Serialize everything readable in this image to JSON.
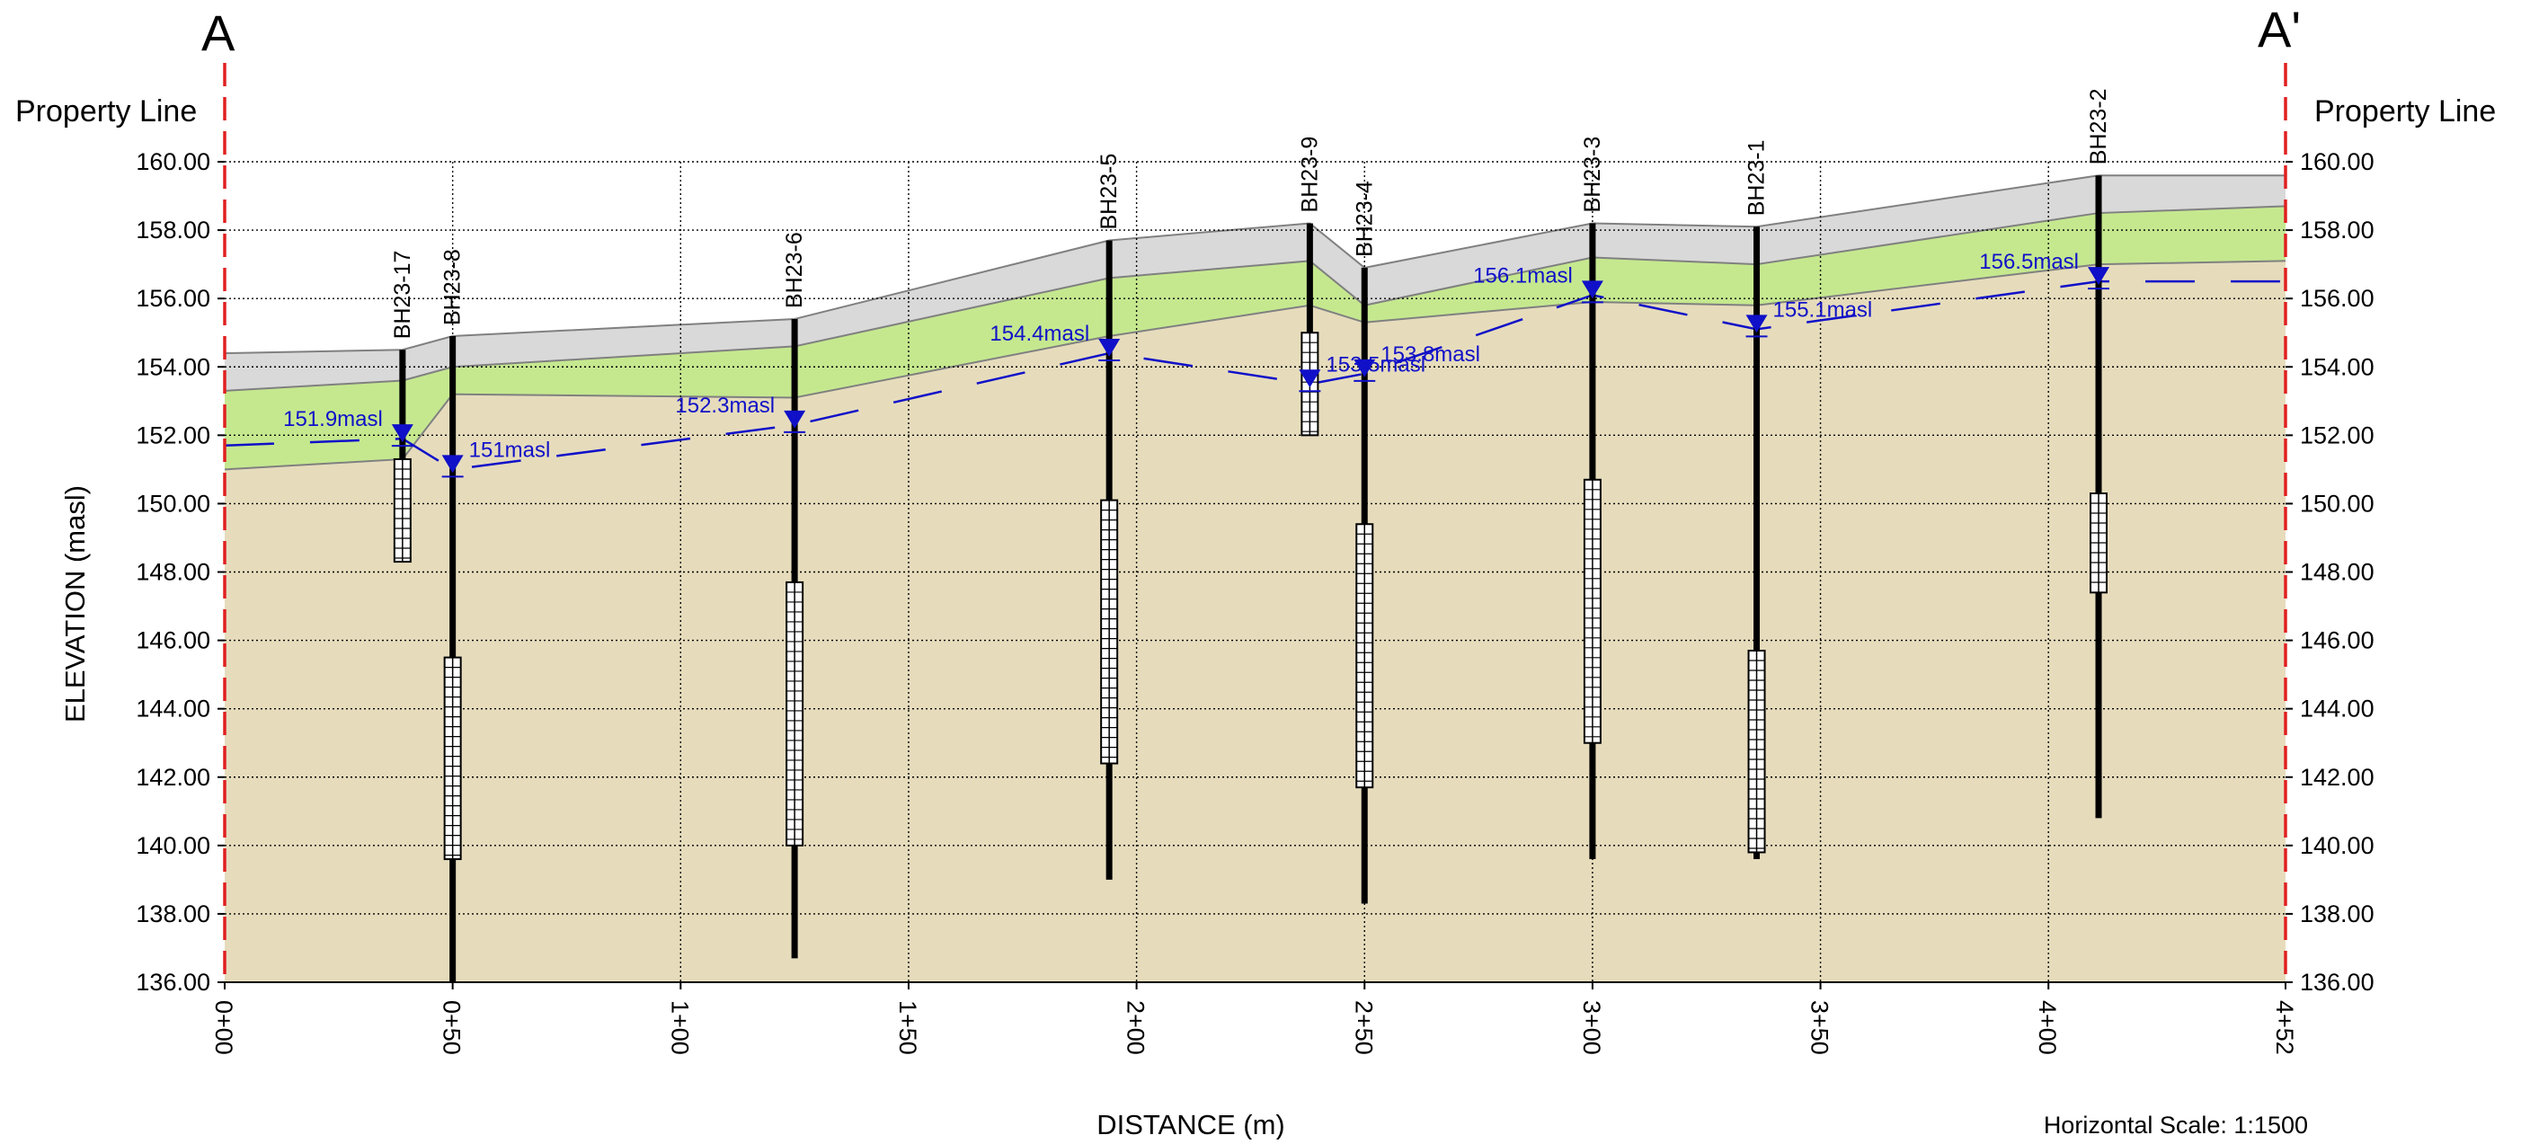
{
  "section": {
    "start_letter": "A",
    "end_letter": "A'",
    "left_boundary_label": "Property Line",
    "right_boundary_label": "Property Line",
    "horizontal_scale": "Horizontal Scale: 1:1500"
  },
  "colors": {
    "topsoil": "#d9d9d9",
    "fill_layer": "#c5e88f",
    "native_soil": "#e6dcbc",
    "water": "#1010c8",
    "property_line": "#e02020",
    "borehole": "#000000"
  },
  "chart_data": {
    "type": "cross-section",
    "xlabel": "DISTANCE (m)",
    "ylabel": "ELEVATION (masl)",
    "xlim": [
      0,
      452
    ],
    "ylim": [
      136,
      160
    ],
    "x_ticks": [
      {
        "value": 0,
        "label": "0+00"
      },
      {
        "value": 50,
        "label": "0+50"
      },
      {
        "value": 100,
        "label": "1+00"
      },
      {
        "value": 150,
        "label": "1+50"
      },
      {
        "value": 200,
        "label": "2+00"
      },
      {
        "value": 250,
        "label": "2+50"
      },
      {
        "value": 300,
        "label": "3+00"
      },
      {
        "value": 350,
        "label": "3+50"
      },
      {
        "value": 400,
        "label": "4+00"
      },
      {
        "value": 452,
        "label": "4+52"
      }
    ],
    "y_ticks": [
      {
        "value": 160,
        "label": "160.00"
      },
      {
        "value": 158,
        "label": "158.00"
      },
      {
        "value": 156,
        "label": "156.00"
      },
      {
        "value": 154,
        "label": "154.00"
      },
      {
        "value": 152,
        "label": "152.00"
      },
      {
        "value": 150,
        "label": "150.00"
      },
      {
        "value": 148,
        "label": "148.00"
      },
      {
        "value": 146,
        "label": "146.00"
      },
      {
        "value": 144,
        "label": "144.00"
      },
      {
        "value": 142,
        "label": "142.00"
      },
      {
        "value": 140,
        "label": "140.00"
      },
      {
        "value": 138,
        "label": "138.00"
      },
      {
        "value": 136,
        "label": "136.00"
      }
    ],
    "grid": true,
    "layers": [
      {
        "id": "topsoil",
        "top": [
          [
            0,
            154.4
          ],
          [
            39,
            154.5
          ],
          [
            50,
            154.9
          ],
          [
            125,
            155.4
          ],
          [
            194,
            157.7
          ],
          [
            238,
            158.2
          ],
          [
            250,
            156.9
          ],
          [
            300,
            158.2
          ],
          [
            336,
            158.1
          ],
          [
            411,
            159.6
          ],
          [
            452,
            159.6
          ]
        ],
        "bottom": [
          [
            0,
            153.3
          ],
          [
            39,
            153.6
          ],
          [
            50,
            154.0
          ],
          [
            125,
            154.6
          ],
          [
            194,
            156.6
          ],
          [
            238,
            157.1
          ],
          [
            250,
            155.8
          ],
          [
            300,
            157.2
          ],
          [
            336,
            157.0
          ],
          [
            411,
            158.5
          ],
          [
            452,
            158.7
          ]
        ]
      },
      {
        "id": "fill_layer",
        "top": [
          [
            0,
            153.3
          ],
          [
            39,
            153.6
          ],
          [
            50,
            154.0
          ],
          [
            125,
            154.6
          ],
          [
            194,
            156.6
          ],
          [
            238,
            157.1
          ],
          [
            250,
            155.8
          ],
          [
            300,
            157.2
          ],
          [
            336,
            157.0
          ],
          [
            411,
            158.5
          ],
          [
            452,
            158.7
          ]
        ],
        "bottom": [
          [
            0,
            151.0
          ],
          [
            39,
            151.3
          ],
          [
            50,
            153.2
          ],
          [
            125,
            153.1
          ],
          [
            194,
            154.9
          ],
          [
            238,
            155.8
          ],
          [
            250,
            155.3
          ],
          [
            300,
            155.9
          ],
          [
            336,
            155.8
          ],
          [
            411,
            157.0
          ],
          [
            452,
            157.1
          ]
        ]
      },
      {
        "id": "native_soil",
        "top": [
          [
            0,
            151.0
          ],
          [
            39,
            151.3
          ],
          [
            50,
            153.2
          ],
          [
            125,
            153.1
          ],
          [
            194,
            154.9
          ],
          [
            238,
            155.8
          ],
          [
            250,
            155.3
          ],
          [
            300,
            155.9
          ],
          [
            336,
            155.8
          ],
          [
            411,
            157.0
          ],
          [
            452,
            157.1
          ]
        ],
        "bottom": [
          [
            0,
            136
          ],
          [
            452,
            136
          ]
        ]
      }
    ],
    "boreholes": [
      {
        "name": "BH23-17",
        "x": 39,
        "top": 154.5,
        "bottom": 148.3,
        "screen": [
          148.3,
          151.3
        ],
        "wl": 151.9,
        "wl_label": "151.9masl"
      },
      {
        "name": "BH23-8",
        "x": 50,
        "top": 154.9,
        "bottom": 136.0,
        "screen": [
          139.6,
          145.5
        ],
        "wl": 151.0,
        "wl_label": "151masl"
      },
      {
        "name": "BH23-6",
        "x": 125,
        "top": 155.4,
        "bottom": 136.7,
        "screen": [
          140.0,
          147.7
        ],
        "wl": 152.3,
        "wl_label": "152.3masl"
      },
      {
        "name": "BH23-5",
        "x": 194,
        "top": 157.7,
        "bottom": 139.0,
        "screen": [
          142.4,
          150.1
        ],
        "wl": 154.4,
        "wl_label": "154.4masl"
      },
      {
        "name": "BH23-9",
        "x": 238,
        "top": 158.2,
        "bottom": 152.0,
        "screen": [
          152.0,
          155.0
        ],
        "wl": 153.5,
        "wl_label": "153.5masl"
      },
      {
        "name": "BH23-4",
        "x": 250,
        "top": 156.9,
        "bottom": 138.3,
        "screen": [
          141.7,
          149.4
        ],
        "wl": 153.8,
        "wl_label": "153.8masl"
      },
      {
        "name": "BH23-3",
        "x": 300,
        "top": 158.2,
        "bottom": 139.6,
        "screen": [
          143.0,
          150.7
        ],
        "wl": 156.1,
        "wl_label": "156.1masl"
      },
      {
        "name": "BH23-1",
        "x": 336,
        "top": 158.1,
        "bottom": 139.6,
        "screen": [
          139.8,
          145.7
        ],
        "wl": 155.1,
        "wl_label": "155.1masl"
      },
      {
        "name": "BH23-2",
        "x": 411,
        "top": 159.6,
        "bottom": 140.8,
        "screen": [
          147.4,
          150.3
        ],
        "wl": 156.5,
        "wl_label": "156.5masl"
      }
    ],
    "water_table": [
      [
        0,
        151.7
      ],
      [
        39,
        151.9
      ],
      [
        50,
        151.0
      ],
      [
        125,
        152.3
      ],
      [
        194,
        154.4
      ],
      [
        238,
        153.5
      ],
      [
        250,
        153.8
      ],
      [
        300,
        156.1
      ],
      [
        336,
        155.1
      ],
      [
        411,
        156.5
      ],
      [
        452,
        156.5
      ]
    ]
  }
}
